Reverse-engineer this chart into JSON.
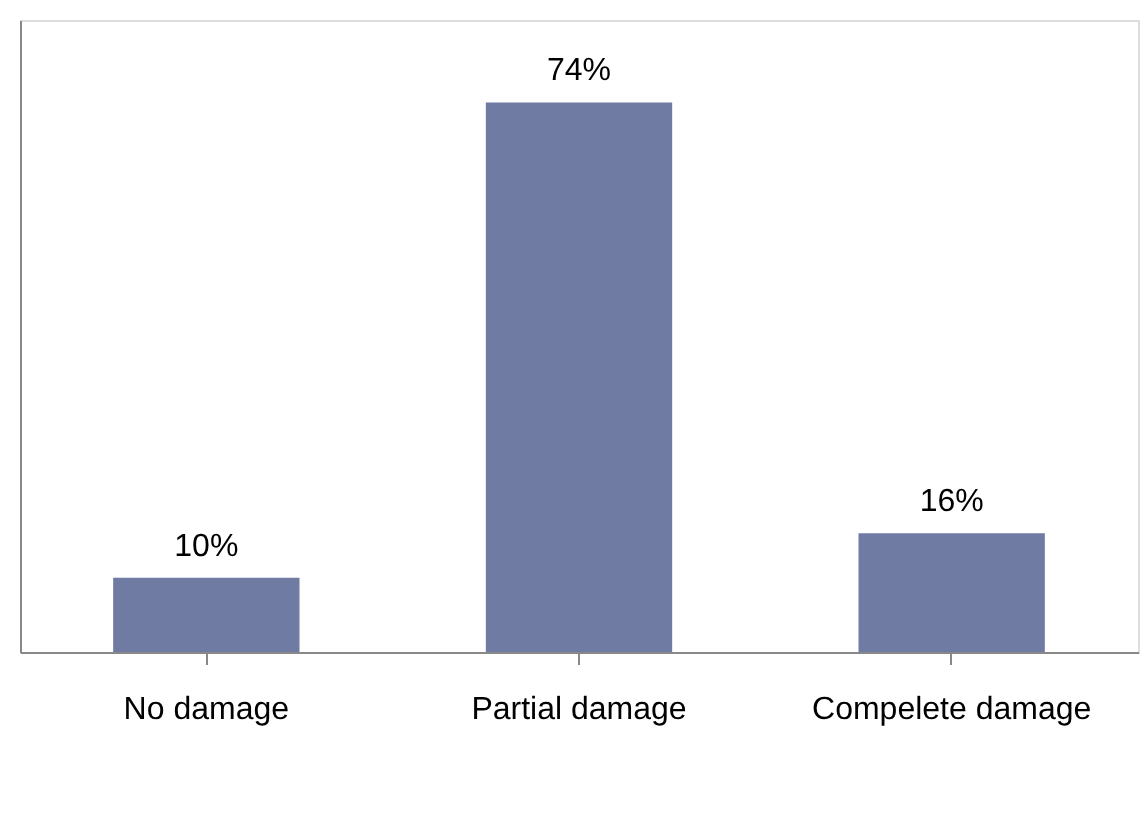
{
  "chart_data": {
    "type": "bar",
    "categories": [
      "No damage",
      "Partial damage",
      "Compelete damage"
    ],
    "values": [
      10,
      74,
      16
    ],
    "color": "#6f7ba3",
    "data_labels": true,
    "value_labels": [
      "10%",
      "74%",
      "16%"
    ],
    "grid": false
  }
}
